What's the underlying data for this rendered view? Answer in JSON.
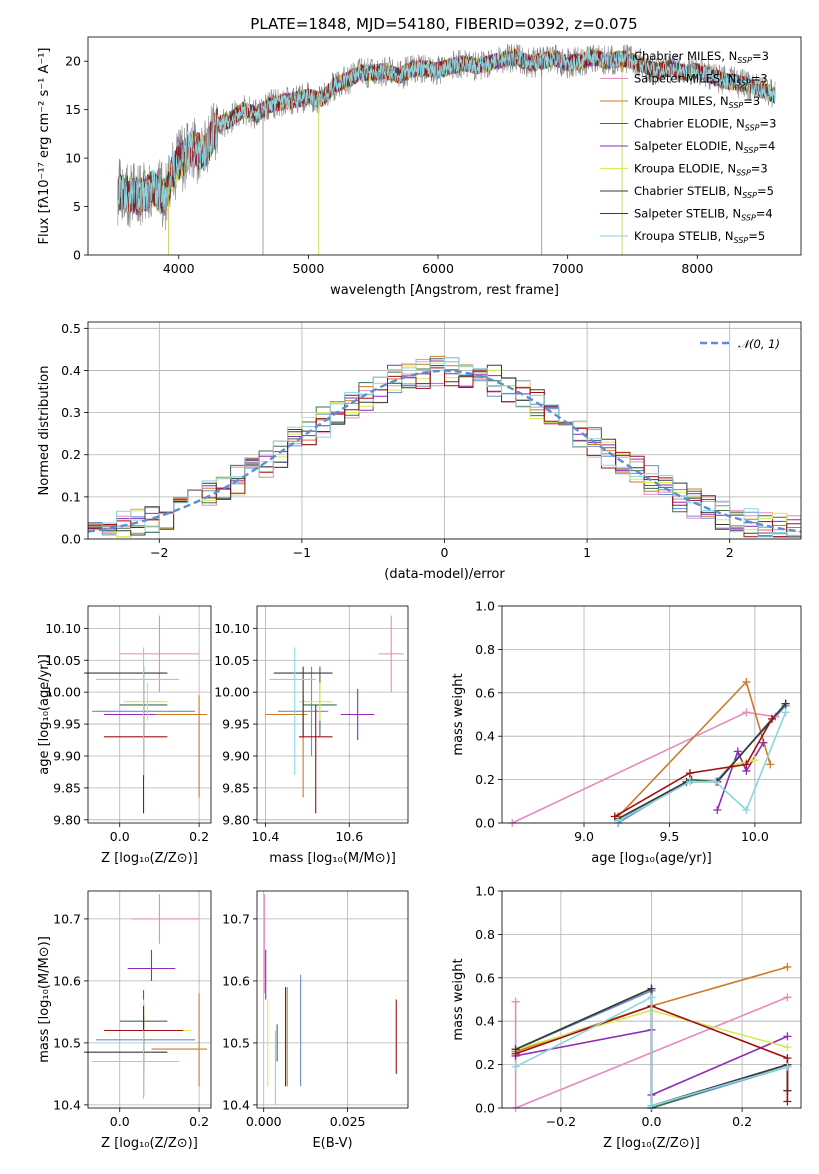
{
  "figure": {
    "title": "PLATE=1848, MJD=54180, FIBERID=0392, z=0.075"
  },
  "colors": [
    "#6a8fd0",
    "#e58bc0",
    "#cc7a2a",
    "#3f6f4d",
    "#8f2bb5",
    "#d7ea55",
    "#3a3a3a",
    "#a01010",
    "#8ad5e0",
    "#c0c0c0"
  ],
  "chart_data": [
    {
      "id": "spectrum",
      "type": "line",
      "title": "PLATE=1848, MJD=54180, FIBERID=0392, z=0.075",
      "xlabel": "wavelength [Angstrom, rest frame]",
      "ylabel": "Flux [fλ10⁻¹⁷ erg cm⁻² s⁻¹ A⁻¹]",
      "xlim": [
        3300,
        8800
      ],
      "ylim": [
        0,
        22.5
      ],
      "xticks": [
        "4000",
        "5000",
        "6000",
        "7000",
        "8000"
      ],
      "yticks": [
        "0",
        "5",
        "10",
        "15",
        "20"
      ],
      "legend_position": "top-right",
      "series": [
        {
          "name": "Chabrier MILES, N_SSP=3",
          "legend": "Chabrier MILES, N",
          "sub": "SSP",
          "suffix": "=3"
        },
        {
          "name": "Salpeter MILES, N_SSP=3",
          "legend": "Salpeter MILES, N",
          "sub": "SSP",
          "suffix": "=3"
        },
        {
          "name": "Kroupa MILES, N_SSP=3",
          "legend": "Kroupa MILES, N",
          "sub": "SSP",
          "suffix": "=3"
        },
        {
          "name": "Chabrier ELODIE, N_SSP=3",
          "legend": "Chabrier ELODIE, N",
          "sub": "SSP",
          "suffix": "=3"
        },
        {
          "name": "Salpeter ELODIE, N_SSP=4",
          "legend": "Salpeter ELODIE, N",
          "sub": "SSP",
          "suffix": "=4"
        },
        {
          "name": "Kroupa ELODIE, N_SSP=3",
          "legend": "Kroupa ELODIE, N",
          "sub": "SSP",
          "suffix": "=3"
        },
        {
          "name": "Chabrier STELIB, N_SSP=5",
          "legend": "Chabrier STELIB, N",
          "sub": "SSP",
          "suffix": "=5"
        },
        {
          "name": "Salpeter STELIB, N_SSP=4",
          "legend": "Salpeter STELIB, N",
          "sub": "SSP",
          "suffix": "=4"
        },
        {
          "name": "Kroupa STELIB, N_SSP=5",
          "legend": "Kroupa STELIB, N",
          "sub": "SSP",
          "suffix": "=5"
        }
      ],
      "continuum": {
        "x": [
          3530,
          3700,
          3800,
          3900,
          3950,
          4000,
          4100,
          4200,
          4300,
          4400,
          4500,
          4600,
          4700,
          4800,
          4900,
          5000,
          5100,
          5200,
          5300,
          5400,
          5500,
          5600,
          5700,
          5800,
          5900,
          6000,
          6100,
          6200,
          6300,
          6400,
          6500,
          6600,
          6700,
          6800,
          6900,
          7000,
          7100,
          7200,
          7300,
          7400,
          7500,
          7600,
          7700,
          7800,
          7900,
          8000,
          8100,
          8200,
          8300,
          8400,
          8500,
          8600
        ],
        "y": [
          6.5,
          6.0,
          6.8,
          6.0,
          8.5,
          9.5,
          11.0,
          10.5,
          13.5,
          14.0,
          15.0,
          14.5,
          15.5,
          15.8,
          16.0,
          16.3,
          16.0,
          17.5,
          18.0,
          18.8,
          18.8,
          19.0,
          18.5,
          19.2,
          19.3,
          19.0,
          19.5,
          19.8,
          19.5,
          19.8,
          20.2,
          20.4,
          19.8,
          20.0,
          20.3,
          19.8,
          20.0,
          20.4,
          20.0,
          20.3,
          20.0,
          19.5,
          19.0,
          19.3,
          18.8,
          19.0,
          18.5,
          18.0,
          17.8,
          17.5,
          17.0,
          16.5
        ]
      },
      "spikes": [
        {
          "x": 3920,
          "y": 0
        },
        {
          "x": 4650,
          "y": 0
        },
        {
          "x": 5080,
          "y": 0
        },
        {
          "x": 6800,
          "y": 0
        },
        {
          "x": 7420,
          "y": 0
        }
      ]
    },
    {
      "id": "residuals",
      "type": "step",
      "xlabel": "(data-model)/error",
      "ylabel": "Normed distribution",
      "xlim": [
        -2.5,
        2.5
      ],
      "ylim": [
        0,
        0.515
      ],
      "xticks": [
        "−2",
        "−1",
        "0",
        "1",
        "2"
      ],
      "yticks": [
        "0.0",
        "0.1",
        "0.2",
        "0.3",
        "0.4",
        "0.5"
      ],
      "bin_width": 0.1,
      "reference": {
        "name": "𝒩(0, 1)",
        "style": "dashed normal curve",
        "color": "#5b8ed6"
      },
      "legend_position": "top-right"
    },
    {
      "id": "age-vs-Z",
      "type": "errorbar",
      "xlabel": "Z [log₁₀(Z/Z⊙)]",
      "ylabel": "age  [log₁₀(age/yr)]",
      "xlim": [
        -0.08,
        0.23
      ],
      "ylim": [
        9.795,
        10.135
      ],
      "xticks": [
        "0.0",
        "0.2"
      ],
      "yticks": [
        "9.80",
        "9.85",
        "9.90",
        "9.95",
        "10.00",
        "10.05",
        "10.10"
      ],
      "points": [
        {
          "x": 0.06,
          "y": 9.97,
          "xerr": [
            0.13,
            0.13
          ],
          "yerr": [
            0.07,
            0.07
          ],
          "c": 0
        },
        {
          "x": 0.1,
          "y": 10.06,
          "xerr": [
            0.1,
            0.1
          ],
          "yerr": [
            0.06,
            0.06
          ],
          "c": 1
        },
        {
          "x": 0.2,
          "y": 9.965,
          "xerr": [
            0.13,
            0.02
          ],
          "yerr": [
            0.13,
            0.03
          ],
          "c": 2
        },
        {
          "x": 0.06,
          "y": 9.98,
          "xerr": [
            0.06,
            0.06
          ],
          "yerr": [
            0.05,
            0.06
          ],
          "c": 3
        },
        {
          "x": 0.06,
          "y": 9.965,
          "xerr": [
            0.1,
            0.03
          ],
          "yerr": [
            0.1,
            0.04
          ],
          "c": 4
        },
        {
          "x": 0.07,
          "y": 9.985,
          "xerr": [
            0.06,
            0.05
          ],
          "yerr": [
            0.03,
            0.03
          ],
          "c": 5
        },
        {
          "x": 0.06,
          "y": 10.03,
          "xerr": [
            0.15,
            0.06
          ],
          "yerr": [
            0.1,
            0.01
          ],
          "c": 6
        },
        {
          "x": 0.06,
          "y": 9.93,
          "xerr": [
            0.1,
            0.06
          ],
          "yerr": [
            0.12,
            0.05
          ],
          "c": 7
        },
        {
          "x": 0.06,
          "y": 10.02,
          "xerr": [
            0.12,
            0.09
          ],
          "yerr": [
            0.15,
            0.05
          ],
          "c": 8
        }
      ]
    },
    {
      "id": "age-vs-mass",
      "type": "errorbar",
      "xlabel": "mass [log₁₀(M/M⊙)]",
      "ylabel": "",
      "xlim": [
        10.38,
        10.74
      ],
      "ylim": [
        9.795,
        10.135
      ],
      "xticks": [
        "10.4",
        "10.6"
      ],
      "yticks": [
        "9.80",
        "9.85",
        "9.90",
        "9.95",
        "10.00",
        "10.05",
        "10.10"
      ],
      "points": [
        {
          "x": 10.51,
          "y": 9.97,
          "xerr": [
            0.08,
            0.04
          ],
          "yerr": [
            0.07,
            0.07
          ],
          "c": 0
        },
        {
          "x": 10.7,
          "y": 10.06,
          "xerr": [
            0.03,
            0.03
          ],
          "yerr": [
            0.06,
            0.06
          ],
          "c": 1
        },
        {
          "x": 10.49,
          "y": 9.965,
          "xerr": [
            0.09,
            0.01
          ],
          "yerr": [
            0.13,
            0.03
          ],
          "c": 2
        },
        {
          "x": 10.53,
          "y": 9.98,
          "xerr": [
            0.04,
            0.04
          ],
          "yerr": [
            0.05,
            0.06
          ],
          "c": 3
        },
        {
          "x": 10.62,
          "y": 9.965,
          "xerr": [
            0.04,
            0.04
          ],
          "yerr": [
            0.04,
            0.04
          ],
          "c": 4
        },
        {
          "x": 10.53,
          "y": 9.985,
          "xerr": [
            0.05,
            0.03
          ],
          "yerr": [
            0.03,
            0.03
          ],
          "c": 5
        },
        {
          "x": 10.49,
          "y": 10.03,
          "xerr": [
            0.07,
            0.07
          ],
          "yerr": [
            0.1,
            0.01
          ],
          "c": 6
        },
        {
          "x": 10.52,
          "y": 9.93,
          "xerr": [
            0.04,
            0.04
          ],
          "yerr": [
            0.12,
            0.05
          ],
          "c": 7
        },
        {
          "x": 10.47,
          "y": 10.02,
          "xerr": [
            0.06,
            0.05
          ],
          "yerr": [
            0.15,
            0.05
          ],
          "c": 8
        }
      ]
    },
    {
      "id": "mass-weight-vs-age",
      "type": "line",
      "xlabel": "age  [log₁₀(age/yr)]",
      "ylabel": "mass weight",
      "xlim": [
        8.52,
        10.27
      ],
      "ylim": [
        0,
        1
      ],
      "xticks": [
        "9.0",
        "9.5",
        "10.0"
      ],
      "yticks": [
        "0.0",
        "0.2",
        "0.4",
        "0.6",
        "0.8",
        "1.0"
      ],
      "series": [
        {
          "c": 0,
          "x": [
            9.2,
            9.62,
            9.77,
            10.18
          ],
          "y": [
            0.0,
            0.2,
            0.19,
            0.54
          ]
        },
        {
          "c": 1,
          "x": [
            8.58,
            9.95,
            10.12
          ],
          "y": [
            0.0,
            0.51,
            0.49
          ]
        },
        {
          "c": 2,
          "x": [
            9.2,
            9.95,
            10.09
          ],
          "y": [
            0.03,
            0.65,
            0.27
          ]
        },
        {
          "c": 3,
          "x": [
            9.2,
            9.63,
            9.78,
            10.18
          ],
          "y": [
            0.01,
            0.2,
            0.19,
            0.55
          ]
        },
        {
          "c": 4,
          "x": [
            9.78,
            9.9,
            9.95,
            10.05
          ],
          "y": [
            0.06,
            0.33,
            0.24,
            0.37
          ]
        },
        {
          "c": 5,
          "x": [
            9.88,
            9.95,
            10.0
          ],
          "y": [
            0.27,
            0.28,
            0.29
          ]
        },
        {
          "c": 6,
          "x": [
            9.2,
            9.6,
            9.78,
            10.18
          ],
          "y": [
            0.02,
            0.19,
            0.19,
            0.55
          ]
        },
        {
          "c": 7,
          "x": [
            9.18,
            9.62,
            9.95,
            10.1
          ],
          "y": [
            0.03,
            0.23,
            0.27,
            0.48
          ]
        },
        {
          "c": 8,
          "x": [
            9.2,
            9.62,
            9.77,
            9.95,
            10.18
          ],
          "y": [
            0.01,
            0.19,
            0.19,
            0.06,
            0.51
          ]
        }
      ]
    },
    {
      "id": "mass-vs-Z",
      "type": "errorbar",
      "xlabel": "Z [log₁₀(Z/Z⊙)]",
      "ylabel": "mass [log₁₀(M/M⊙)]",
      "xlim": [
        -0.08,
        0.23
      ],
      "ylim": [
        10.395,
        10.745
      ],
      "xticks": [
        "0.0",
        "0.2"
      ],
      "yticks": [
        "10.4",
        "10.5",
        "10.6",
        "10.7"
      ],
      "points": [
        {
          "x": 0.06,
          "y": 10.505,
          "xerr": [
            0.12,
            0.13
          ],
          "yerr": [
            0.09,
            0.04
          ],
          "c": 0
        },
        {
          "x": 0.1,
          "y": 10.7,
          "xerr": [
            0.07,
            0.1
          ],
          "yerr": [
            0.04,
            0.04
          ],
          "c": 1
        },
        {
          "x": 0.2,
          "y": 10.49,
          "xerr": [
            0.12,
            0.02
          ],
          "yerr": [
            0.06,
            0.09
          ],
          "c": 2
        },
        {
          "x": 0.06,
          "y": 10.535,
          "xerr": [
            0.06,
            0.06
          ],
          "yerr": [
            0.05,
            0.05
          ],
          "c": 3
        },
        {
          "x": 0.08,
          "y": 10.62,
          "xerr": [
            0.06,
            0.06
          ],
          "yerr": [
            0.02,
            0.03
          ],
          "c": 4
        },
        {
          "x": 0.06,
          "y": 10.52,
          "xerr": [
            0.06,
            0.12
          ],
          "yerr": [
            0.05,
            0.05
          ],
          "c": 5
        },
        {
          "x": 0.06,
          "y": 10.485,
          "xerr": [
            0.15,
            0.06
          ],
          "yerr": [
            0.07,
            0.06
          ],
          "c": 6
        },
        {
          "x": 0.06,
          "y": 10.52,
          "xerr": [
            0.1,
            0.1
          ],
          "yerr": [
            0.07,
            0.04
          ],
          "c": 7
        },
        {
          "x": 0.06,
          "y": 10.47,
          "xerr": [
            0.13,
            0.09
          ],
          "yerr": [
            0.06,
            0.05
          ],
          "c": 8
        }
      ]
    },
    {
      "id": "mass-vs-ebv",
      "type": "errorbar",
      "xlabel": "E(B-V)",
      "ylabel": "",
      "xlim": [
        -0.002,
        0.043
      ],
      "ylim": [
        10.395,
        10.745
      ],
      "xticks": [
        "0.000",
        "0.025"
      ],
      "yticks": [
        "10.4",
        "10.5",
        "10.6",
        "10.7"
      ],
      "points": [
        {
          "x": 0.011,
          "y": 10.52,
          "xerr": [
            0,
            0
          ],
          "yerr": [
            0.09,
            0.09
          ],
          "c": 0
        },
        {
          "x": 0.0003,
          "y": 10.66,
          "xerr": [
            0,
            0
          ],
          "yerr": [
            0.08,
            0.08
          ],
          "c": 1
        },
        {
          "x": 0.007,
          "y": 10.51,
          "xerr": [
            0,
            0
          ],
          "yerr": [
            0.08,
            0.08
          ],
          "c": 2
        },
        {
          "x": 0.004,
          "y": 10.5,
          "xerr": [
            0,
            0
          ],
          "yerr": [
            0.03,
            0.03
          ],
          "c": 3
        },
        {
          "x": 0.0006,
          "y": 10.61,
          "xerr": [
            0,
            0
          ],
          "yerr": [
            0.04,
            0.04
          ],
          "c": 4
        },
        {
          "x": 0.0012,
          "y": 10.5,
          "xerr": [
            0,
            0
          ],
          "yerr": [
            0.07,
            0.07
          ],
          "c": 5
        },
        {
          "x": 0.0065,
          "y": 10.51,
          "xerr": [
            0,
            0
          ],
          "yerr": [
            0.08,
            0.08
          ],
          "c": 6
        },
        {
          "x": 0.0395,
          "y": 10.51,
          "xerr": [
            0,
            0
          ],
          "yerr": [
            0.06,
            0.06
          ],
          "c": 7
        },
        {
          "x": 0.0035,
          "y": 10.46,
          "xerr": [
            0,
            0
          ],
          "yerr": [
            0.06,
            0.06
          ],
          "c": 8
        }
      ]
    },
    {
      "id": "mass-weight-vs-Z",
      "type": "line",
      "xlabel": "Z [log₁₀(Z/Z⊙)]",
      "ylabel": "mass weight",
      "xlim": [
        -0.33,
        0.33
      ],
      "ylim": [
        0,
        1
      ],
      "xticks": [
        "−0.2",
        "0.0",
        "0.2"
      ],
      "yticks": [
        "0.0",
        "0.2",
        "0.4",
        "0.6",
        "0.8",
        "1.0"
      ],
      "series": [
        {
          "c": 0,
          "x": [
            -0.3,
            0.0,
            0.0,
            0.3,
            0.3
          ],
          "y": [
            0.27,
            0.54,
            0.0,
            0.19,
            0.08
          ],
          "marks": [
            0,
            1,
            2,
            3,
            4
          ]
        },
        {
          "c": 1,
          "x": [
            -0.3,
            -0.3,
            0.3
          ],
          "y": [
            0.49,
            0.0,
            0.51
          ]
        },
        {
          "c": 2,
          "x": [
            -0.3,
            0.0,
            0.3
          ],
          "y": [
            0.26,
            0.47,
            0.65
          ]
        },
        {
          "c": 3,
          "x": [
            -0.3,
            0.0,
            0.0,
            0.3,
            0.3
          ],
          "y": [
            0.27,
            0.55,
            0.0,
            0.2,
            0.08
          ]
        },
        {
          "c": 4,
          "x": [
            -0.3,
            0.0,
            0.0,
            0.3
          ],
          "y": [
            0.24,
            0.36,
            0.06,
            0.33
          ]
        },
        {
          "c": 5,
          "x": [
            -0.3,
            0.0,
            0.3
          ],
          "y": [
            0.27,
            0.45,
            0.28
          ]
        },
        {
          "c": 6,
          "x": [
            -0.3,
            0.0,
            0.0,
            0.3,
            0.3
          ],
          "y": [
            0.27,
            0.55,
            0.01,
            0.2,
            0.08
          ]
        },
        {
          "c": 7,
          "x": [
            -0.3,
            0.0,
            0.3,
            0.3
          ],
          "y": [
            0.25,
            0.47,
            0.23,
            0.03
          ]
        },
        {
          "c": 8,
          "x": [
            -0.3,
            0.0,
            0.0,
            0.3
          ],
          "y": [
            0.19,
            0.51,
            0.01,
            0.19
          ]
        }
      ]
    }
  ]
}
